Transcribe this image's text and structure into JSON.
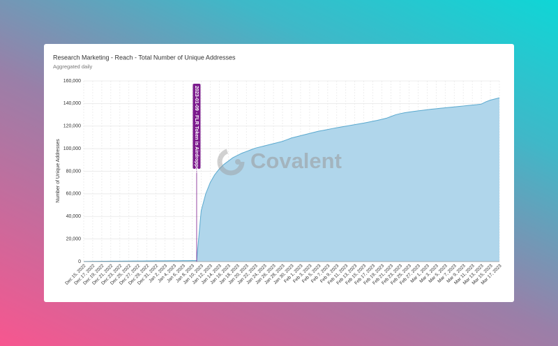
{
  "chart_data": {
    "type": "area",
    "title": "Research Marketing - Reach - Total Number of Unique Addresses",
    "subtitle": "Aggregated daily",
    "y_label": "Number of Unique Addresses",
    "watermark": "Covalent",
    "annotation": "2023-01-09 - FLR Token is Airdropped",
    "color": "#5aa9cf",
    "fill": "#b0d6eb",
    "grid": true,
    "categories": [
      "Dec 15, 2022",
      null,
      "Dec 17, 2022",
      null,
      "Dec 19, 2022",
      null,
      "Dec 21, 2022",
      null,
      "Dec 23, 2022",
      null,
      "Dec 25, 2022",
      null,
      "Dec 27, 2022",
      null,
      "Dec 29, 2022",
      null,
      "Dec 31, 2022",
      null,
      "Jan 2, 2023",
      null,
      "Jan 4, 2023",
      null,
      "Jan 6, 2023",
      null,
      "Jan 8, 2023",
      null,
      "Jan 10, 2023",
      null,
      "Jan 12, 2023",
      null,
      "Jan 14, 2023",
      null,
      "Jan 16, 2023",
      null,
      "Jan 18, 2023",
      null,
      "Jan 20, 2023",
      null,
      "Jan 22, 2023",
      null,
      "Jan 24, 2023",
      null,
      "Jan 26, 2023",
      null,
      "Jan 28, 2023",
      null,
      "Jan 30, 2023",
      null,
      "Feb 1, 2023",
      null,
      "Feb 3, 2023",
      null,
      "Feb 5, 2023",
      null,
      "Feb 7, 2023",
      null,
      "Feb 9, 2023",
      null,
      "Feb 11, 2023",
      null,
      "Feb 13, 2023",
      null,
      "Feb 15, 2023",
      null,
      "Feb 17, 2023",
      null,
      "Feb 19, 2023",
      null,
      "Feb 21, 2023",
      null,
      "Feb 23, 2023",
      null,
      "Feb 25, 2023",
      null,
      "Feb 27, 2023",
      null,
      "Mar 1, 2023",
      null,
      "Mar 3, 2023",
      null,
      "Mar 5, 2023",
      null,
      "Mar 7, 2023",
      null,
      "Mar 9, 2023",
      null,
      "Mar 11, 2023",
      null,
      "Mar 13, 2023",
      null,
      "Mar 15, 2023",
      null,
      "Mar 17, 2023"
    ],
    "values": [
      100,
      150,
      200,
      250,
      300,
      330,
      360,
      390,
      420,
      450,
      480,
      510,
      540,
      570,
      600,
      630,
      660,
      690,
      720,
      750,
      780,
      810,
      840,
      870,
      900,
      1000,
      45000,
      60000,
      70000,
      77000,
      82000,
      86000,
      89000,
      92000,
      94000,
      96000,
      97500,
      99000,
      100500,
      101500,
      102500,
      103500,
      104500,
      105500,
      106500,
      108000,
      109500,
      110500,
      111500,
      112500,
      113500,
      114500,
      115500,
      116200,
      117000,
      117800,
      118500,
      119200,
      119900,
      120600,
      121300,
      122000,
      122700,
      123500,
      124300,
      125100,
      126000,
      127000,
      128500,
      130000,
      131000,
      131800,
      132400,
      133000,
      133500,
      134000,
      134500,
      135000,
      135400,
      135800,
      136200,
      136600,
      137000,
      137400,
      137800,
      138200,
      138600,
      139000,
      139500,
      141500,
      143000,
      144000,
      145000
    ],
    "ylim": [
      0,
      160000
    ],
    "yticks": [
      0,
      {
        "value": 20000,
        "label": "20,000"
      },
      {
        "value": 40000,
        "label": "40,000"
      },
      {
        "value": 60000,
        "label": "60,000"
      },
      {
        "value": 80000,
        "label": "80,000"
      },
      {
        "value": 100000,
        "label": "100,000"
      },
      {
        "value": 120000,
        "label": "120,000"
      },
      {
        "value": 140000,
        "label": "140,000"
      },
      {
        "value": 160000,
        "label": "160,000"
      }
    ]
  }
}
